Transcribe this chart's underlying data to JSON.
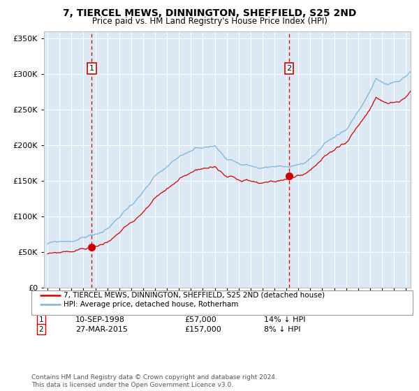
{
  "title": "7, TIERCEL MEWS, DINNINGTON, SHEFFIELD, S25 2ND",
  "subtitle": "Price paid vs. HM Land Registry's House Price Index (HPI)",
  "legend_line1": "7, TIERCEL MEWS, DINNINGTON, SHEFFIELD, S25 2ND (detached house)",
  "legend_line2": "HPI: Average price, detached house, Rotherham",
  "annotation1_date": "10-SEP-1998",
  "annotation1_price": 57000,
  "annotation1_label": "14% ↓ HPI",
  "annotation2_date": "27-MAR-2015",
  "annotation2_price": 157000,
  "annotation2_label": "8% ↓ HPI",
  "sale1_year": 1998.69,
  "sale1_price": 57000,
  "sale2_year": 2015.23,
  "sale2_price": 157000,
  "hpi_color": "#7ab4d8",
  "price_color": "#cc0000",
  "plot_bg": "#dce9f5",
  "grid_color": "#ffffff",
  "vline_color": "#cc0000",
  "ylim": [
    0,
    360000
  ],
  "xlim_start": 1994.7,
  "xlim_end": 2025.4,
  "footnote": "Contains HM Land Registry data © Crown copyright and database right 2024.\nThis data is licensed under the Open Government Licence v3.0."
}
